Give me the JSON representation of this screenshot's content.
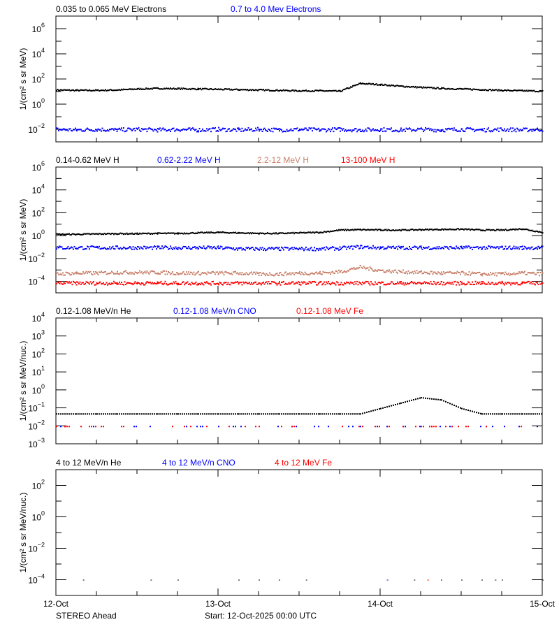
{
  "chart_data": [
    {
      "type": "scatter",
      "legend_placement": "top",
      "ylabel": "1/(cm² s sr MeV)",
      "yscale": "log",
      "ylim_exp": [
        -3,
        7
      ],
      "ytick_exps": [
        -2,
        0,
        2,
        4,
        6
      ],
      "x_hours": [
        0,
        3,
        6,
        9,
        12,
        15,
        18,
        21,
        24,
        27,
        30,
        33,
        36,
        39,
        42,
        45,
        48,
        51,
        54,
        57,
        60,
        63,
        66,
        69,
        72
      ],
      "series": [
        {
          "name": "0.035 to 0.065 MeV Electrons",
          "color": "#000000",
          "values": [
            15,
            14,
            14,
            15,
            18,
            20,
            19,
            18,
            17,
            16,
            15,
            14,
            13,
            13,
            12,
            50,
            40,
            30,
            24,
            20,
            18,
            16,
            14,
            13,
            12
          ]
        },
        {
          "name": "0.7 to 4.0 Mev Electrons",
          "color": "#0000ff",
          "values": [
            0.011,
            0.01,
            0.011,
            0.01,
            0.011,
            0.01,
            0.011,
            0.01,
            0.011,
            0.01,
            0.011,
            0.01,
            0.011,
            0.01,
            0.011,
            0.01,
            0.011,
            0.01,
            0.011,
            0.01,
            0.011,
            0.01,
            0.011,
            0.01,
            0.011
          ]
        }
      ]
    },
    {
      "type": "scatter",
      "legend_placement": "top",
      "ylabel": "1/(cm² s sr MeV)",
      "yscale": "log",
      "ylim_exp": [
        -5,
        6
      ],
      "ytick_exps": [
        -4,
        -2,
        0,
        2,
        4,
        6
      ],
      "x_hours": [
        0,
        3,
        6,
        9,
        12,
        15,
        18,
        21,
        24,
        27,
        30,
        33,
        36,
        39,
        42,
        45,
        48,
        51,
        54,
        57,
        60,
        63,
        66,
        69,
        72
      ],
      "series": [
        {
          "name": "0.14-0.62 MeV H",
          "color": "#000000",
          "values": [
            1.5,
            1.5,
            1.6,
            1.7,
            1.7,
            1.8,
            1.8,
            2.0,
            2.2,
            2.0,
            1.8,
            1.8,
            2.0,
            2.2,
            3.5,
            3.8,
            3.6,
            3.5,
            3.8,
            4.0,
            4.2,
            3.5,
            3.5,
            4.5,
            2.2
          ]
        },
        {
          "name": "0.62-2.22 MeV H",
          "color": "#0000ff",
          "values": [
            0.1,
            0.1,
            0.1,
            0.1,
            0.1,
            0.1,
            0.1,
            0.1,
            0.1,
            0.08,
            0.08,
            0.08,
            0.08,
            0.08,
            0.09,
            0.12,
            0.1,
            0.1,
            0.1,
            0.1,
            0.1,
            0.1,
            0.1,
            0.1,
            0.1
          ]
        },
        {
          "name": "2.2-12 MeV H",
          "color": "#c8806a",
          "values": [
            0.0005,
            0.0006,
            0.0006,
            0.0007,
            0.0007,
            0.0007,
            0.0006,
            0.0006,
            0.0006,
            0.0006,
            0.0005,
            0.0005,
            0.0006,
            0.0006,
            0.0008,
            0.002,
            0.001,
            0.0008,
            0.0007,
            0.0006,
            0.0006,
            0.0005,
            0.0005,
            0.0006,
            0.0005
          ]
        },
        {
          "name": "13-100 MeV H",
          "color": "#ff0000",
          "values": [
            8e-05,
            8e-05,
            8e-05,
            8e-05,
            8e-05,
            8e-05,
            8e-05,
            8e-05,
            8e-05,
            8e-05,
            8e-05,
            8e-05,
            8e-05,
            8e-05,
            8e-05,
            8e-05,
            8e-05,
            8e-05,
            8e-05,
            8e-05,
            8e-05,
            8e-05,
            8e-05,
            8e-05,
            8e-05
          ]
        }
      ]
    },
    {
      "type": "scatter",
      "legend_placement": "top",
      "ylabel": "1/(cm² s sr MeV/nuc.)",
      "yscale": "log",
      "ylim_exp": [
        -3,
        4
      ],
      "ytick_exps": [
        -3,
        -2,
        -1,
        0,
        1,
        2,
        3,
        4
      ],
      "x_hours": [
        0,
        3,
        6,
        9,
        12,
        15,
        18,
        21,
        24,
        27,
        30,
        33,
        36,
        39,
        42,
        45,
        48,
        51,
        54,
        57,
        60,
        63,
        66,
        69,
        72
      ],
      "series": [
        {
          "name": "0.12-1.08 MeV/n He",
          "color": "#000000",
          "values": [
            0.05,
            0.05,
            0.05,
            0.05,
            0.05,
            0.05,
            0.05,
            0.05,
            0.05,
            0.05,
            0.05,
            0.05,
            0.05,
            0.05,
            0.05,
            0.05,
            0.1,
            0.2,
            0.4,
            0.3,
            0.1,
            0.05,
            0.05,
            0.05,
            0.05
          ]
        },
        {
          "name": "0.12-1.08 MeV/n CNO",
          "color": "#0000ff",
          "values": [
            0.01,
            0.01,
            0.01,
            0.01,
            0.01,
            0.01,
            0.01,
            0.01,
            0.01,
            0.01,
            0.01,
            0.01,
            0.01,
            0.01,
            0.01,
            0.01,
            0.01,
            0.01,
            0.01,
            0.01,
            0.01,
            0.01,
            0.01,
            0.01,
            0.01
          ]
        },
        {
          "name": "0.12-1.08 MeV Fe",
          "color": "#ff0000",
          "values": [
            0.01,
            0.01,
            0.01,
            0.01,
            0.01,
            0.01,
            0.01,
            0.01,
            0.01,
            0.01,
            0.01,
            0.01,
            0.01,
            0.01,
            0.01,
            0.01,
            0.01,
            0.01,
            0.01,
            0.01,
            0.01,
            0.01,
            0.01,
            0.01,
            0.01
          ]
        }
      ]
    },
    {
      "type": "scatter",
      "legend_placement": "top",
      "ylabel": "1/(cm² s sr MeV/nuc.)",
      "yscale": "log",
      "ylim_exp": [
        -5,
        3
      ],
      "ytick_exps": [
        -4,
        -2,
        0,
        2
      ],
      "x_hours": [
        4,
        14,
        18,
        27,
        30,
        33,
        37,
        49,
        53,
        55,
        57,
        60,
        63,
        65,
        66,
        72
      ],
      "series": [
        {
          "name": "4 to 12 MeV/n He",
          "color": "#000000",
          "values": [
            0.0001,
            0.0001,
            0.0001,
            0.0001,
            0.0001,
            0.0001,
            0.0001,
            0.0001,
            0.0001,
            0.0001,
            0.0001,
            0.0001,
            0.0001,
            0.0001,
            0.0001,
            0.0001
          ]
        },
        {
          "name": "4 to 12 MeV/n CNO",
          "color": "#0000ff",
          "values": [
            null,
            null,
            null,
            null,
            null,
            null,
            null,
            0.0001,
            null,
            null,
            null,
            null,
            null,
            null,
            null,
            null
          ]
        },
        {
          "name": "4 to 12 MeV Fe",
          "color": "#ff0000",
          "values": [
            null,
            null,
            null,
            null,
            null,
            null,
            null,
            null,
            null,
            0.0001,
            null,
            null,
            null,
            null,
            null,
            null
          ]
        }
      ]
    }
  ],
  "x_axis": {
    "tick_labels": [
      "12-Oct",
      "13-Oct",
      "14-Oct",
      "15-Oct"
    ],
    "range_hours": [
      0,
      72
    ],
    "minor_tick_hours": 6
  },
  "footer": {
    "spacecraft": "STEREO Ahead",
    "start": "Start: 12-Oct-2025 00:00 UTC"
  }
}
